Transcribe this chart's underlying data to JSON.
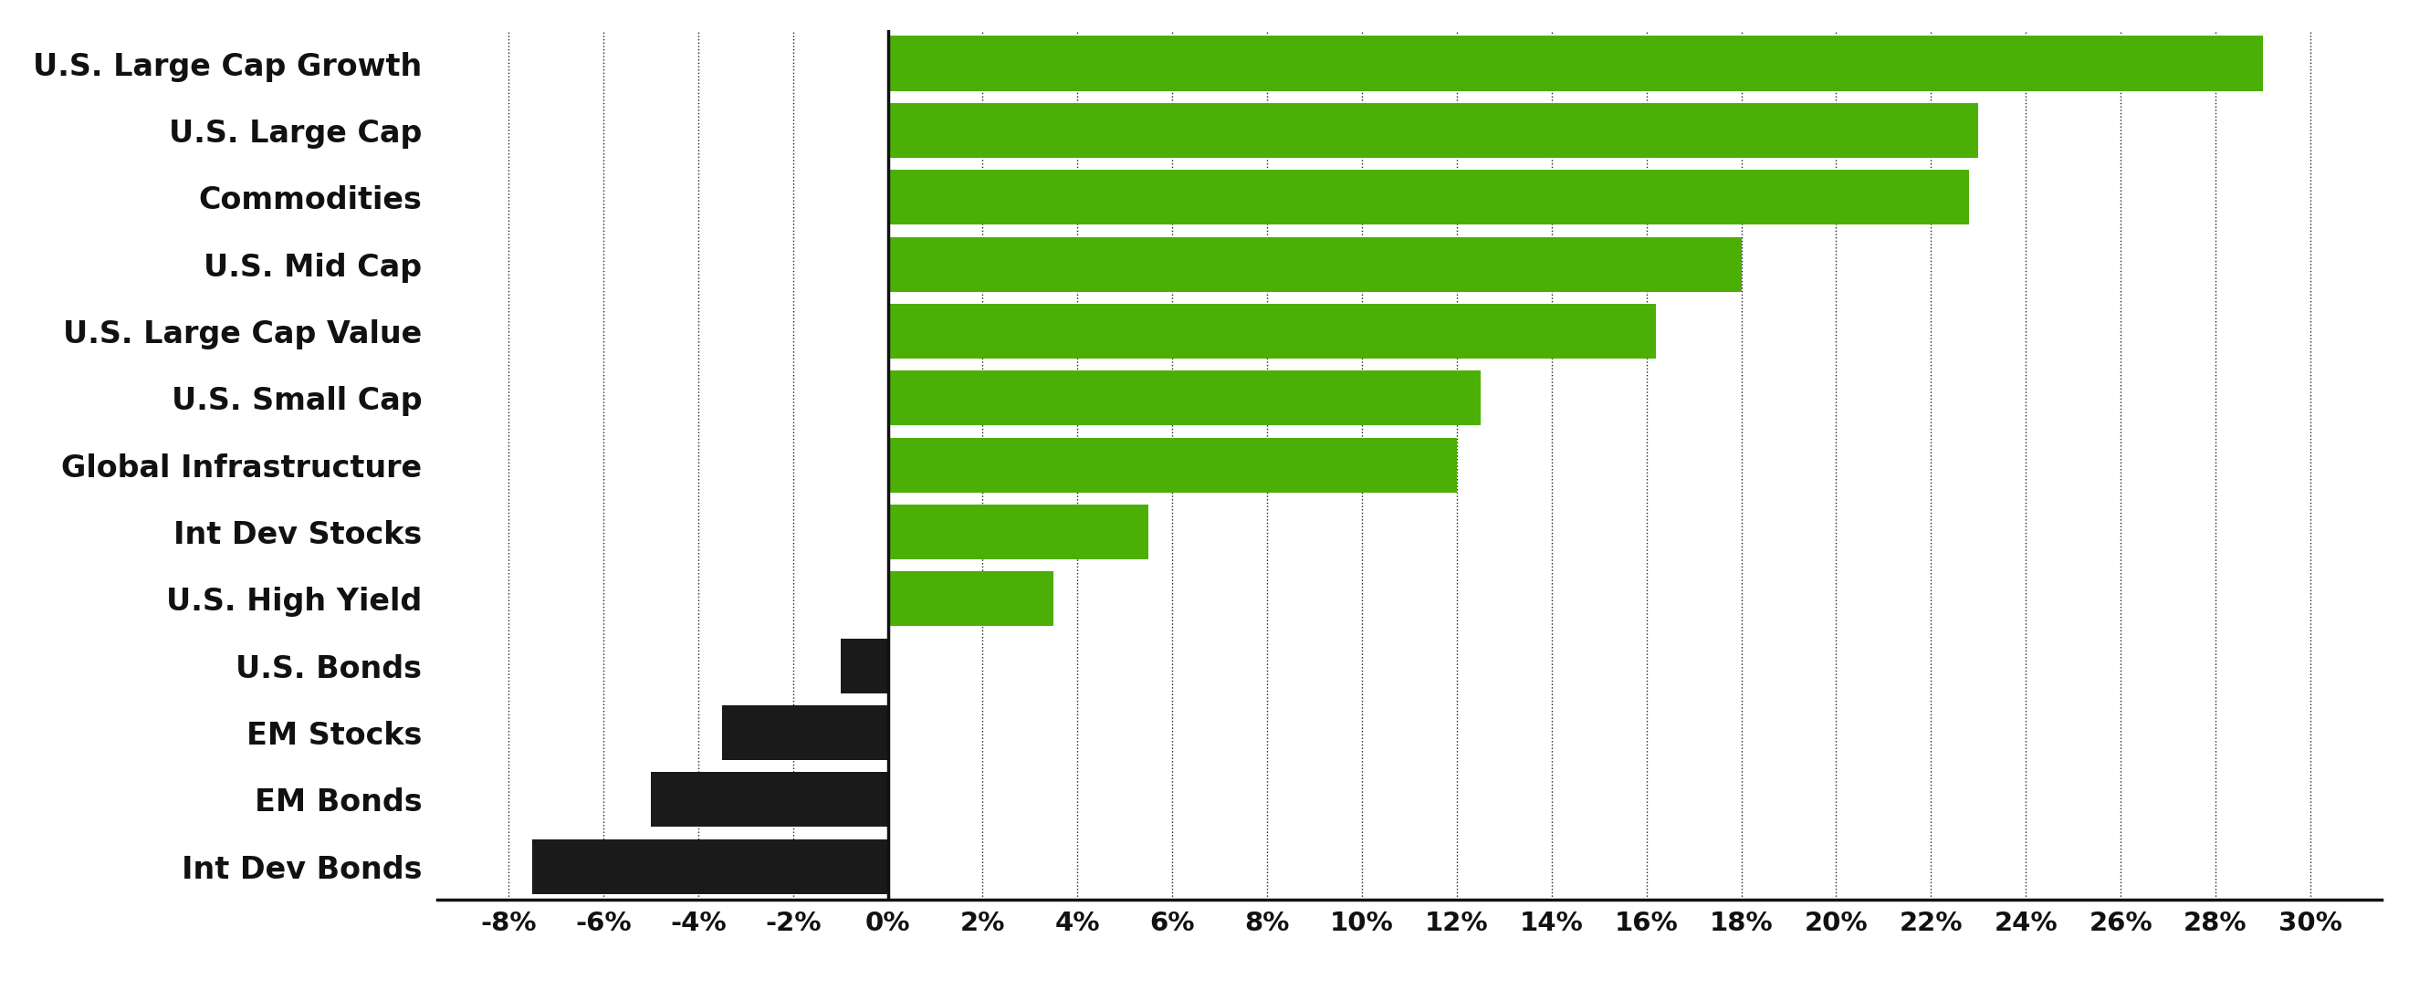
{
  "categories": [
    "U.S. Large Cap Growth",
    "U.S. Large Cap",
    "Commodities",
    "U.S. Mid Cap",
    "U.S. Large Cap Value",
    "U.S. Small Cap",
    "Global Infrastructure",
    "Int Dev Stocks",
    "U.S. High Yield",
    "U.S. Bonds",
    "EM Stocks",
    "EM Bonds",
    "Int Dev Bonds"
  ],
  "values": [
    29.0,
    23.0,
    22.8,
    18.0,
    16.2,
    12.5,
    12.0,
    5.5,
    3.5,
    -1.0,
    -3.5,
    -5.0,
    -7.5
  ],
  "bar_color_positive": "#4caf06",
  "bar_color_negative": "#1a1a1a",
  "background_color": "#ffffff",
  "xlim": [
    -9.5,
    31.5
  ],
  "xticks": [
    -8,
    -6,
    -4,
    -2,
    0,
    2,
    4,
    6,
    8,
    10,
    12,
    14,
    16,
    18,
    20,
    22,
    24,
    26,
    28,
    30
  ],
  "xtick_labels": [
    "-8%",
    "-6%",
    "-4%",
    "-2%",
    "0%",
    "2%",
    "4%",
    "6%",
    "8%",
    "10%",
    "12%",
    "14%",
    "16%",
    "18%",
    "20%",
    "22%",
    "24%",
    "26%",
    "28%",
    "30%"
  ],
  "bar_height": 0.82,
  "label_fontsize": 24,
  "tick_fontsize": 21,
  "grid_color": "#222222",
  "axis_color": "#111111",
  "grid_linewidth": 1.0,
  "grid_linestyle": ":"
}
